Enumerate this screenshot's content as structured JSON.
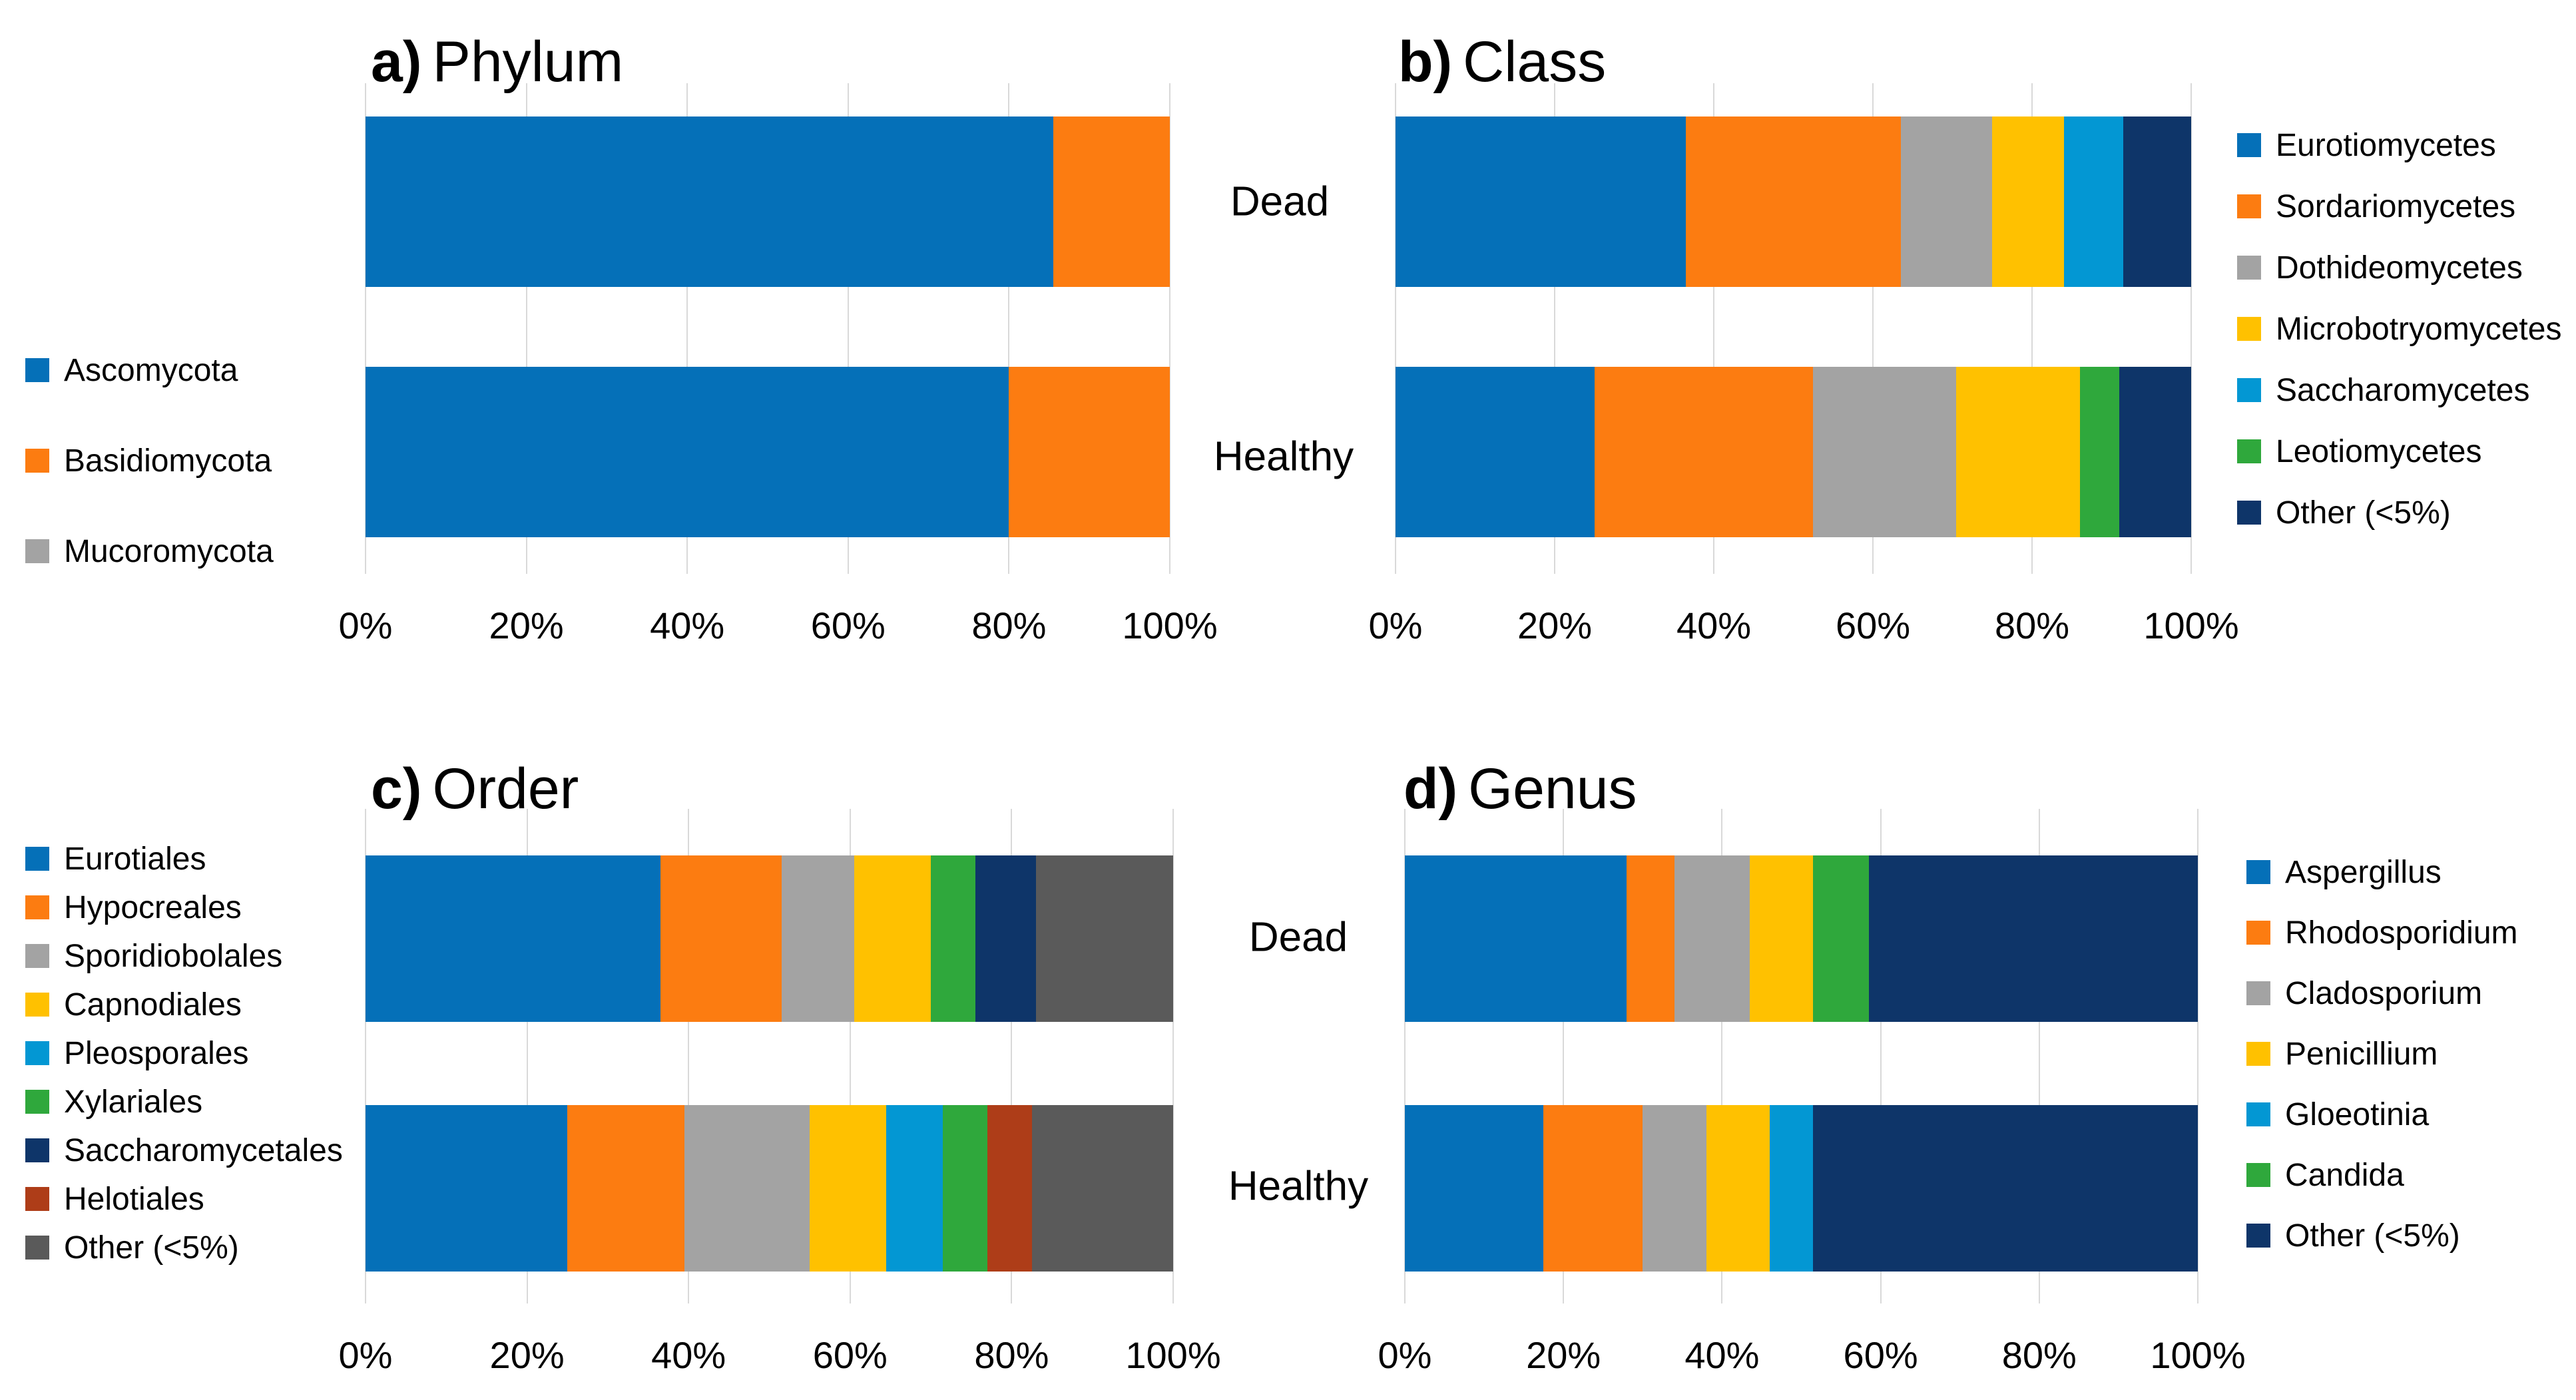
{
  "figure": {
    "row_labels": [
      "Dead",
      "Healthy"
    ],
    "panels": [
      {
        "prefix": "a)",
        "label": "Phylum"
      },
      {
        "prefix": "b)",
        "label": "Class"
      },
      {
        "prefix": "c)",
        "label": "Order"
      },
      {
        "prefix": "d)",
        "label": "Genus"
      }
    ],
    "colors": {
      "blue": "#0570B8",
      "orange": "#FC7C11",
      "gray": "#A3A3A3",
      "yellow": "#FFC100",
      "light_blue": "#0397D3",
      "green": "#2FA83C",
      "navy": "#0E3569",
      "brown": "#AE3D18",
      "dark_gray": "#5A5A5A",
      "gridline": "#D9D9D9"
    }
  },
  "chart_data": [
    {
      "type": "bar",
      "orientation": "horizontal",
      "stacked": true,
      "title": "a) Phylum",
      "categories": [
        "Dead",
        "Healthy"
      ],
      "x_ticks": [
        "0%",
        "20%",
        "40%",
        "60%",
        "80%",
        "100%"
      ],
      "xlim": [
        0,
        100
      ],
      "grid": true,
      "legend_position": "left",
      "series": [
        {
          "name": "Ascomycota",
          "color": "#0570B8",
          "values": [
            85.5,
            80
          ]
        },
        {
          "name": "Basidiomycota",
          "color": "#FC7C11",
          "values": [
            14.5,
            20
          ]
        },
        {
          "name": "Mucoromycota",
          "color": "#A3A3A3",
          "values": [
            0,
            0
          ]
        }
      ]
    },
    {
      "type": "bar",
      "orientation": "horizontal",
      "stacked": true,
      "title": "b) Class",
      "categories": [
        "Dead",
        "Healthy"
      ],
      "x_ticks": [
        "0%",
        "20%",
        "40%",
        "60%",
        "80%",
        "100%"
      ],
      "xlim": [
        0,
        100
      ],
      "grid": true,
      "legend_position": "right",
      "series": [
        {
          "name": "Eurotiomycetes",
          "color": "#0570B8",
          "values": [
            36.5,
            25
          ]
        },
        {
          "name": "Sordariomycetes",
          "color": "#FC7C11",
          "values": [
            27,
            27.5
          ]
        },
        {
          "name": "Dothideomycetes",
          "color": "#A3A3A3",
          "values": [
            11.5,
            18
          ]
        },
        {
          "name": "Microbotryomycetes",
          "color": "#FFC100",
          "values": [
            9,
            15.5
          ]
        },
        {
          "name": "Saccharomycetes",
          "color": "#0397D3",
          "values": [
            7.5,
            0
          ]
        },
        {
          "name": "Leotiomycetes",
          "color": "#2FA83C",
          "values": [
            0,
            5
          ]
        },
        {
          "name": "Other (<5%)",
          "color": "#0E3569",
          "values": [
            8.5,
            9
          ]
        }
      ]
    },
    {
      "type": "bar",
      "orientation": "horizontal",
      "stacked": true,
      "title": "c) Order",
      "categories": [
        "Dead",
        "Healthy"
      ],
      "x_ticks": [
        "0%",
        "20%",
        "40%",
        "60%",
        "80%",
        "100%"
      ],
      "xlim": [
        0,
        100
      ],
      "grid": true,
      "legend_position": "left",
      "series": [
        {
          "name": "Eurotiales",
          "color": "#0570B8",
          "values": [
            36.5,
            25
          ]
        },
        {
          "name": "Hypocreales",
          "color": "#FC7C11",
          "values": [
            15,
            14.5
          ]
        },
        {
          "name": "Sporidiobolales",
          "color": "#A3A3A3",
          "values": [
            9,
            15.5
          ]
        },
        {
          "name": "Capnodiales",
          "color": "#FFC100",
          "values": [
            9.5,
            9.5
          ]
        },
        {
          "name": "Pleosporales",
          "color": "#0397D3",
          "values": [
            0,
            7
          ]
        },
        {
          "name": "Xylariales",
          "color": "#2FA83C",
          "values": [
            5.5,
            5.5
          ]
        },
        {
          "name": "Saccharomycetales",
          "color": "#0E3569",
          "values": [
            7.5,
            0
          ]
        },
        {
          "name": "Helotiales",
          "color": "#AE3D18",
          "values": [
            0,
            5.5
          ]
        },
        {
          "name": "Other (<5%)",
          "color": "#5A5A5A",
          "values": [
            17,
            17.5
          ]
        }
      ]
    },
    {
      "type": "bar",
      "orientation": "horizontal",
      "stacked": true,
      "title": "d) Genus",
      "categories": [
        "Dead",
        "Healthy"
      ],
      "x_ticks": [
        "0%",
        "20%",
        "40%",
        "60%",
        "80%",
        "100%"
      ],
      "xlim": [
        0,
        100
      ],
      "grid": true,
      "legend_position": "right",
      "series": [
        {
          "name": "Aspergillus",
          "color": "#0570B8",
          "values": [
            28,
            17.5
          ]
        },
        {
          "name": "Rhodosporidium",
          "color": "#FC7C11",
          "values": [
            6,
            12.5
          ]
        },
        {
          "name": "Cladosporium",
          "color": "#A3A3A3",
          "values": [
            9.5,
            8
          ]
        },
        {
          "name": "Penicillium",
          "color": "#FFC100",
          "values": [
            8,
            8
          ]
        },
        {
          "name": "Gloeotinia",
          "color": "#0397D3",
          "values": [
            0,
            5.5
          ]
        },
        {
          "name": "Candida",
          "color": "#2FA83C",
          "values": [
            7,
            0
          ]
        },
        {
          "name": "Other (<5%)",
          "color": "#0E3569",
          "values": [
            41.5,
            48.5
          ]
        }
      ]
    }
  ]
}
